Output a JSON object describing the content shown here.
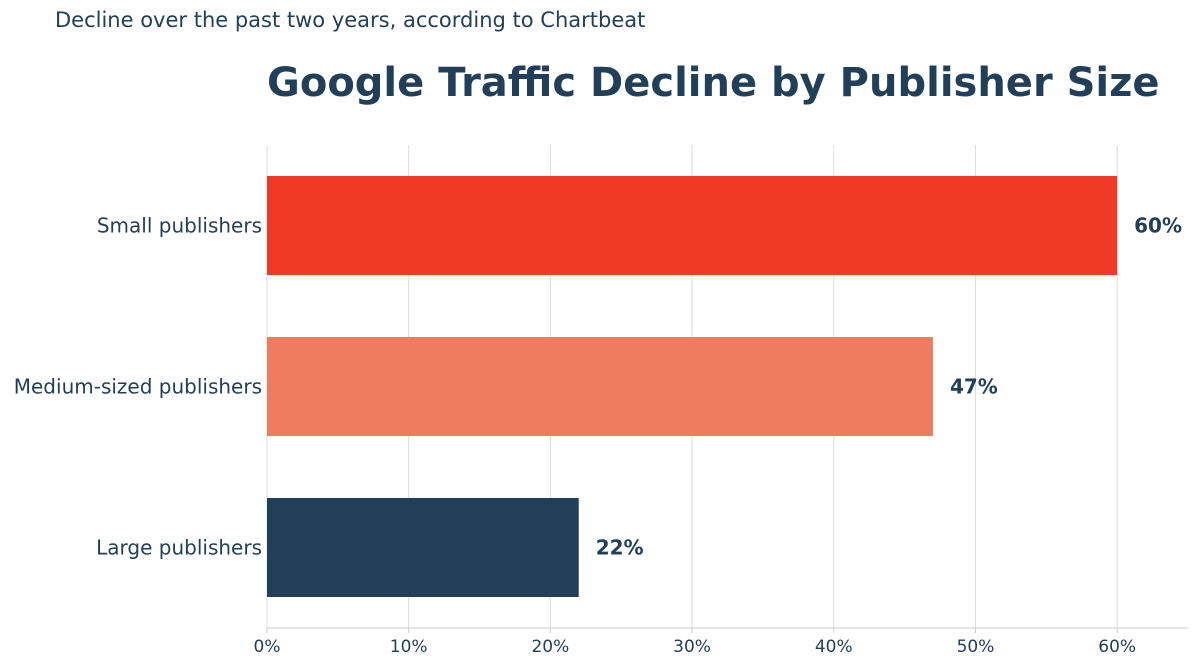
{
  "subtitle": "Decline over the past two years, according to Chartbeat",
  "chart_data": {
    "type": "bar",
    "orientation": "horizontal",
    "title": "Google Traffic Decline by Publisher Size",
    "categories": [
      "Small publishers",
      "Medium-sized publishers",
      "Large publishers"
    ],
    "values": [
      60,
      47,
      22
    ],
    "value_labels": [
      "60%",
      "47%",
      "22%"
    ],
    "colors": [
      "#ee3a26",
      "#f07c5f",
      "#223f5a"
    ],
    "xlim": [
      0,
      65
    ],
    "xticks": [
      0,
      10,
      20,
      30,
      40,
      50,
      60
    ],
    "xtick_labels": [
      "0%",
      "10%",
      "20%",
      "30%",
      "40%",
      "50%",
      "60%"
    ],
    "xlabel": "",
    "ylabel": "",
    "grid": "vertical",
    "text_color": "#223f5a",
    "grid_color": "#dddddd"
  }
}
